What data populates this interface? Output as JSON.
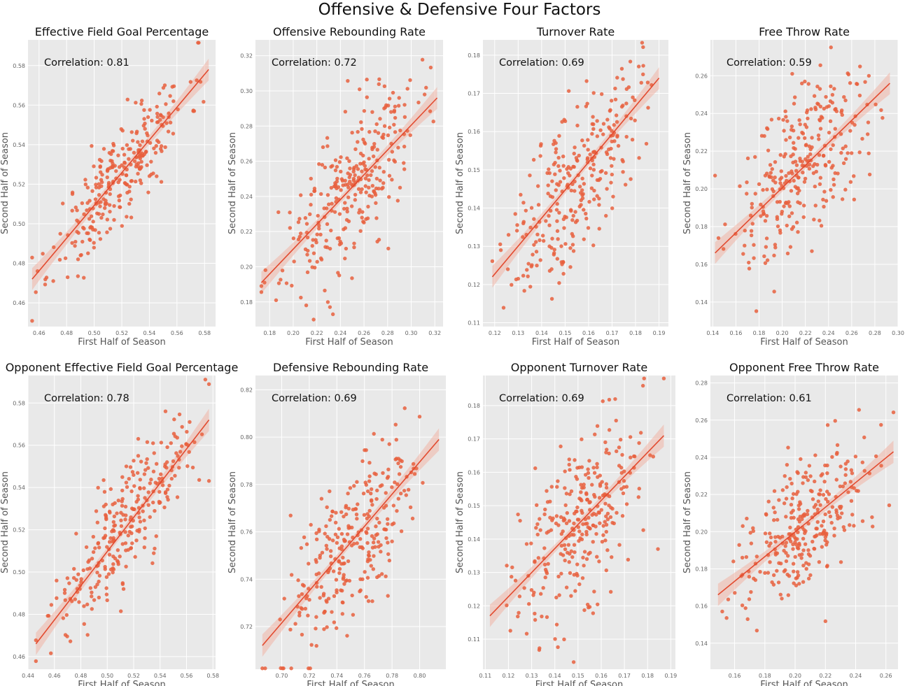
{
  "figure": {
    "title": "Offensive & Defensive Four Factors"
  },
  "colors": {
    "background": "#e9e9e9",
    "grid": "#ffffff",
    "point": "#e8603e",
    "line": "#e24a2f",
    "band": "#f0b4a6"
  },
  "chart_data": [
    {
      "type": "scatter",
      "title": "Effective Field Goal Percentage",
      "xlabel": "First Half of Season",
      "ylabel": "Second Half of Season",
      "annotation": "Correlation: 0.81",
      "xlim": [
        0.452,
        0.588
      ],
      "ylim": [
        0.448,
        0.593
      ],
      "xticks": [
        0.46,
        0.48,
        0.5,
        0.52,
        0.54,
        0.56,
        0.58
      ],
      "yticks": [
        0.46,
        0.48,
        0.5,
        0.52,
        0.54,
        0.56,
        0.58
      ],
      "decimals": 2,
      "n_points": 280,
      "seed": 11,
      "noise_sd": 0.0123,
      "regression": {
        "x": [
          0.455,
          0.583
        ],
        "y": [
          0.472,
          0.578
        ]
      }
    },
    {
      "type": "scatter",
      "title": "Offensive Rebounding Rate",
      "xlabel": "First Half of Season",
      "ylabel": "Second Half of Season",
      "annotation": "Correlation: 0.72",
      "xlim": [
        0.168,
        0.327
      ],
      "ylim": [
        0.166,
        0.329
      ],
      "xticks": [
        0.18,
        0.2,
        0.22,
        0.24,
        0.26,
        0.28,
        0.3,
        0.32
      ],
      "yticks": [
        0.18,
        0.2,
        0.22,
        0.24,
        0.26,
        0.28,
        0.3,
        0.32
      ],
      "decimals": 2,
      "n_points": 290,
      "seed": 23,
      "noise_sd": 0.0205,
      "regression": {
        "x": [
          0.173,
          0.322
        ],
        "y": [
          0.191,
          0.296
        ]
      }
    },
    {
      "type": "scatter",
      "title": "Turnover Rate",
      "xlabel": "First Half of Season",
      "ylabel": "Second Half of Season",
      "annotation": "Correlation: 0.69",
      "xlim": [
        0.115,
        0.194
      ],
      "ylim": [
        0.109,
        0.184
      ],
      "xticks": [
        0.12,
        0.13,
        0.14,
        0.15,
        0.16,
        0.17,
        0.18,
        0.19
      ],
      "yticks": [
        0.11,
        0.12,
        0.13,
        0.14,
        0.15,
        0.16,
        0.17,
        0.18
      ],
      "decimals": 2,
      "n_points": 280,
      "seed": 37,
      "noise_sd": 0.0102,
      "regression": {
        "x": [
          0.119,
          0.19
        ],
        "y": [
          0.122,
          0.174
        ]
      }
    },
    {
      "type": "scatter",
      "title": "Free Throw Rate",
      "xlabel": "First Half of Season",
      "ylabel": "Second Half of Season",
      "annotation": "Correlation: 0.59",
      "xlim": [
        0.138,
        0.3
      ],
      "ylim": [
        0.127,
        0.279
      ],
      "xticks": [
        0.14,
        0.16,
        0.18,
        0.2,
        0.22,
        0.24,
        0.26,
        0.28,
        0.3
      ],
      "yticks": [
        0.14,
        0.16,
        0.18,
        0.2,
        0.22,
        0.24,
        0.26
      ],
      "decimals": 2,
      "n_points": 290,
      "seed": 51,
      "noise_sd": 0.021,
      "regression": {
        "x": [
          0.142,
          0.293
        ],
        "y": [
          0.166,
          0.256
        ]
      }
    },
    {
      "type": "scatter",
      "title": "Opponent Effective Field Goal Percentage",
      "xlabel": "First Half of Season",
      "ylabel": "Second Half of Season",
      "annotation": "Correlation: 0.78",
      "xlim": [
        0.44,
        0.582
      ],
      "ylim": [
        0.454,
        0.593
      ],
      "xticks": [
        0.44,
        0.46,
        0.48,
        0.5,
        0.52,
        0.54,
        0.56,
        0.58
      ],
      "yticks": [
        0.46,
        0.48,
        0.5,
        0.52,
        0.54,
        0.56,
        0.58
      ],
      "decimals": 2,
      "n_points": 280,
      "seed": 67,
      "noise_sd": 0.0135,
      "regression": {
        "x": [
          0.446,
          0.577
        ],
        "y": [
          0.466,
          0.572
        ]
      }
    },
    {
      "type": "scatter",
      "title": "Defensive Rebounding Rate",
      "xlabel": "First Half of Season",
      "ylabel": "Second Half of Season",
      "annotation": "Correlation: 0.69",
      "xlim": [
        0.681,
        0.819
      ],
      "ylim": [
        0.702,
        0.826
      ],
      "xticks": [
        0.7,
        0.72,
        0.74,
        0.76,
        0.78,
        0.8
      ],
      "yticks": [
        0.72,
        0.74,
        0.76,
        0.78,
        0.8,
        0.82
      ],
      "decimals": 2,
      "n_points": 285,
      "seed": 79,
      "noise_sd": 0.0155,
      "regression": {
        "x": [
          0.686,
          0.814
        ],
        "y": [
          0.712,
          0.799
        ]
      }
    },
    {
      "type": "scatter",
      "title": "Opponent Turnover Rate",
      "xlabel": "First Half of Season",
      "ylabel": "Second Half of Season",
      "annotation": "Correlation: 0.69",
      "xlim": [
        0.109,
        0.192
      ],
      "ylim": [
        0.101,
        0.189
      ],
      "xticks": [
        0.11,
        0.12,
        0.13,
        0.14,
        0.15,
        0.16,
        0.17,
        0.18,
        0.19
      ],
      "yticks": [
        0.11,
        0.12,
        0.13,
        0.14,
        0.15,
        0.16,
        0.17,
        0.18
      ],
      "decimals": 2,
      "n_points": 290,
      "seed": 97,
      "noise_sd": 0.0135,
      "regression": {
        "x": [
          0.112,
          0.187
        ],
        "y": [
          0.117,
          0.171
        ]
      }
    },
    {
      "type": "scatter",
      "title": "Opponent Free Throw Rate",
      "xlabel": "First Half of Season",
      "ylabel": "Second Half of Season",
      "annotation": "Correlation: 0.61",
      "xlim": [
        0.144,
        0.268
      ],
      "ylim": [
        0.126,
        0.284
      ],
      "xticks": [
        0.16,
        0.18,
        0.2,
        0.22,
        0.24,
        0.26
      ],
      "yticks": [
        0.14,
        0.16,
        0.18,
        0.2,
        0.22,
        0.24,
        0.26,
        0.28
      ],
      "decimals": 2,
      "n_points": 290,
      "seed": 113,
      "noise_sd": 0.0175,
      "regression": {
        "x": [
          0.149,
          0.265
        ],
        "y": [
          0.166,
          0.243
        ]
      }
    }
  ]
}
